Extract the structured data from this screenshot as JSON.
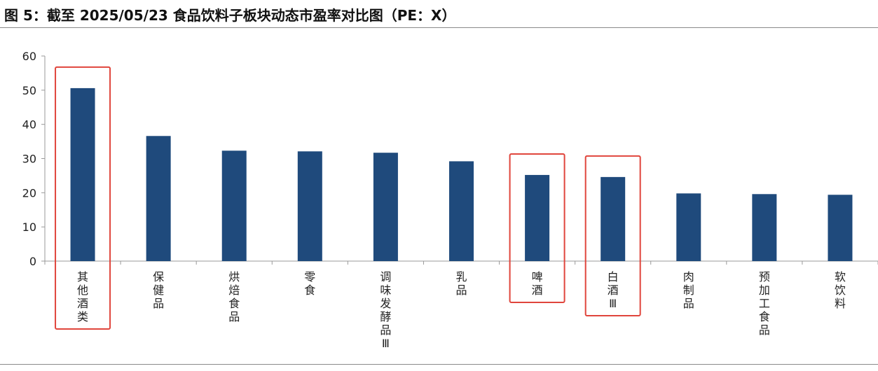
{
  "title": "图 5：截至 2025/05/23 食品饮料子板块动态市盈率对比图（PE：X）",
  "colors": {
    "bar": "#1f4a7c",
    "highlight_box": "#e0453c",
    "axis": "#999999"
  },
  "chart_data": {
    "type": "bar",
    "title": "图 5：截至 2025/05/23 食品饮料子板块动态市盈率对比图（PE：X）",
    "xlabel": "",
    "ylabel": "",
    "ylim": [
      0,
      60
    ],
    "yticks": [
      0,
      10,
      20,
      30,
      40,
      50,
      60
    ],
    "grid": false,
    "categories": [
      "其他酒类",
      "保健品",
      "烘焙食品",
      "零食",
      "调味发酵品Ⅲ",
      "乳品",
      "啤酒",
      "白酒Ⅲ",
      "肉制品",
      "预加工食品",
      "软饮料"
    ],
    "values": [
      50.6,
      36.6,
      32.3,
      32.1,
      31.7,
      29.2,
      25.2,
      24.6,
      19.8,
      19.6,
      19.4
    ],
    "highlighted": [
      "其他酒类",
      "啤酒",
      "白酒Ⅲ"
    ]
  }
}
